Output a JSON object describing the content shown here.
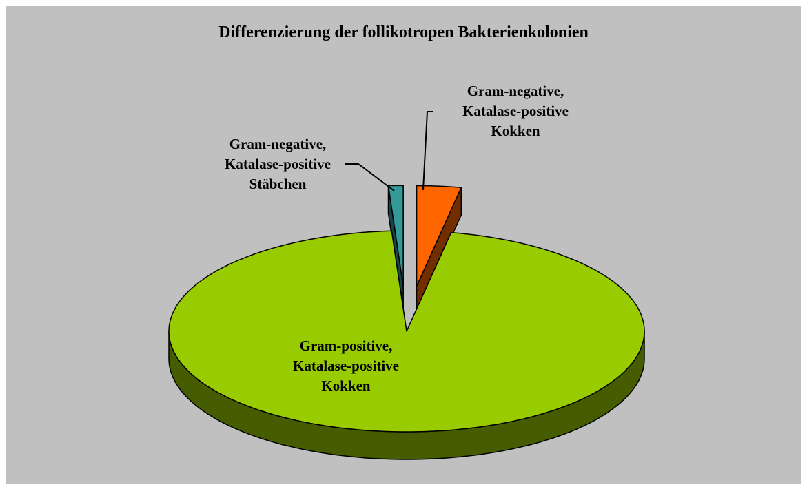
{
  "chart_data": {
    "type": "pie",
    "title": "Differenzierung der follikotropen Bakterienkolonien",
    "categories": [
      "Gram-negative, Katalase-positive Kokken",
      "Gram-positive, Katalase-positive Kokken",
      "Gram-negative, Katalase-positive Stäbchen"
    ],
    "values": [
      3,
      96,
      1
    ],
    "colors": [
      "#ff6600",
      "#99cc00",
      "#339999"
    ]
  }
}
